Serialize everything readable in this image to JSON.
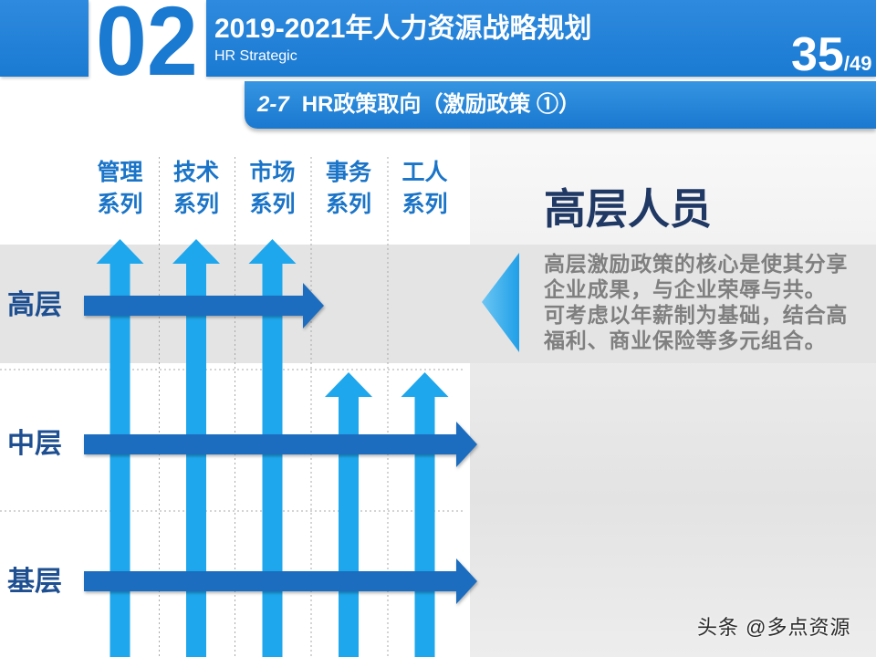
{
  "header": {
    "section_number": "02",
    "title": "2019-2021年人力资源战略规划",
    "subtitle": "HR Strategic",
    "page_current": "35",
    "page_total": "/49"
  },
  "subheader": {
    "number": "2-7",
    "title": "HR政策取向（激励政策 ①）"
  },
  "matrix": {
    "columns": [
      {
        "line1": "管理",
        "line2": "系列",
        "arrow_reaches_row": 0
      },
      {
        "line1": "技术",
        "line2": "系列",
        "arrow_reaches_row": 0
      },
      {
        "line1": "市场",
        "line2": "系列",
        "arrow_reaches_row": 0
      },
      {
        "line1": "事务",
        "line2": "系列",
        "arrow_reaches_row": 1
      },
      {
        "line1": "工人",
        "line2": "系列",
        "arrow_reaches_row": 1
      }
    ],
    "rows": [
      {
        "label": "高层",
        "arrow_spans_columns": 3
      },
      {
        "label": "中层",
        "arrow_spans_columns": 5
      },
      {
        "label": "基层",
        "arrow_spans_columns": 5
      }
    ]
  },
  "callout": {
    "title": "高层人员",
    "lines": [
      "高层激励政策的核心是使其分享",
      "企业成果，与企业荣辱与共。",
      "可考虑以年薪制为基础，结合高",
      "福利、商业保险等多元组合。"
    ]
  },
  "watermark": "头条 @多点资源",
  "colors": {
    "primary_blue": "#1a7ad2",
    "vertical_arrow": "#1ea7ed",
    "horizontal_arrow": "#1a6dbf",
    "heading_navy": "#1f3864",
    "row_label": "#1e4f91",
    "column_header": "#1a74c8",
    "body_text": "#7f7f7f",
    "band_gray": "#e4e4e4"
  }
}
